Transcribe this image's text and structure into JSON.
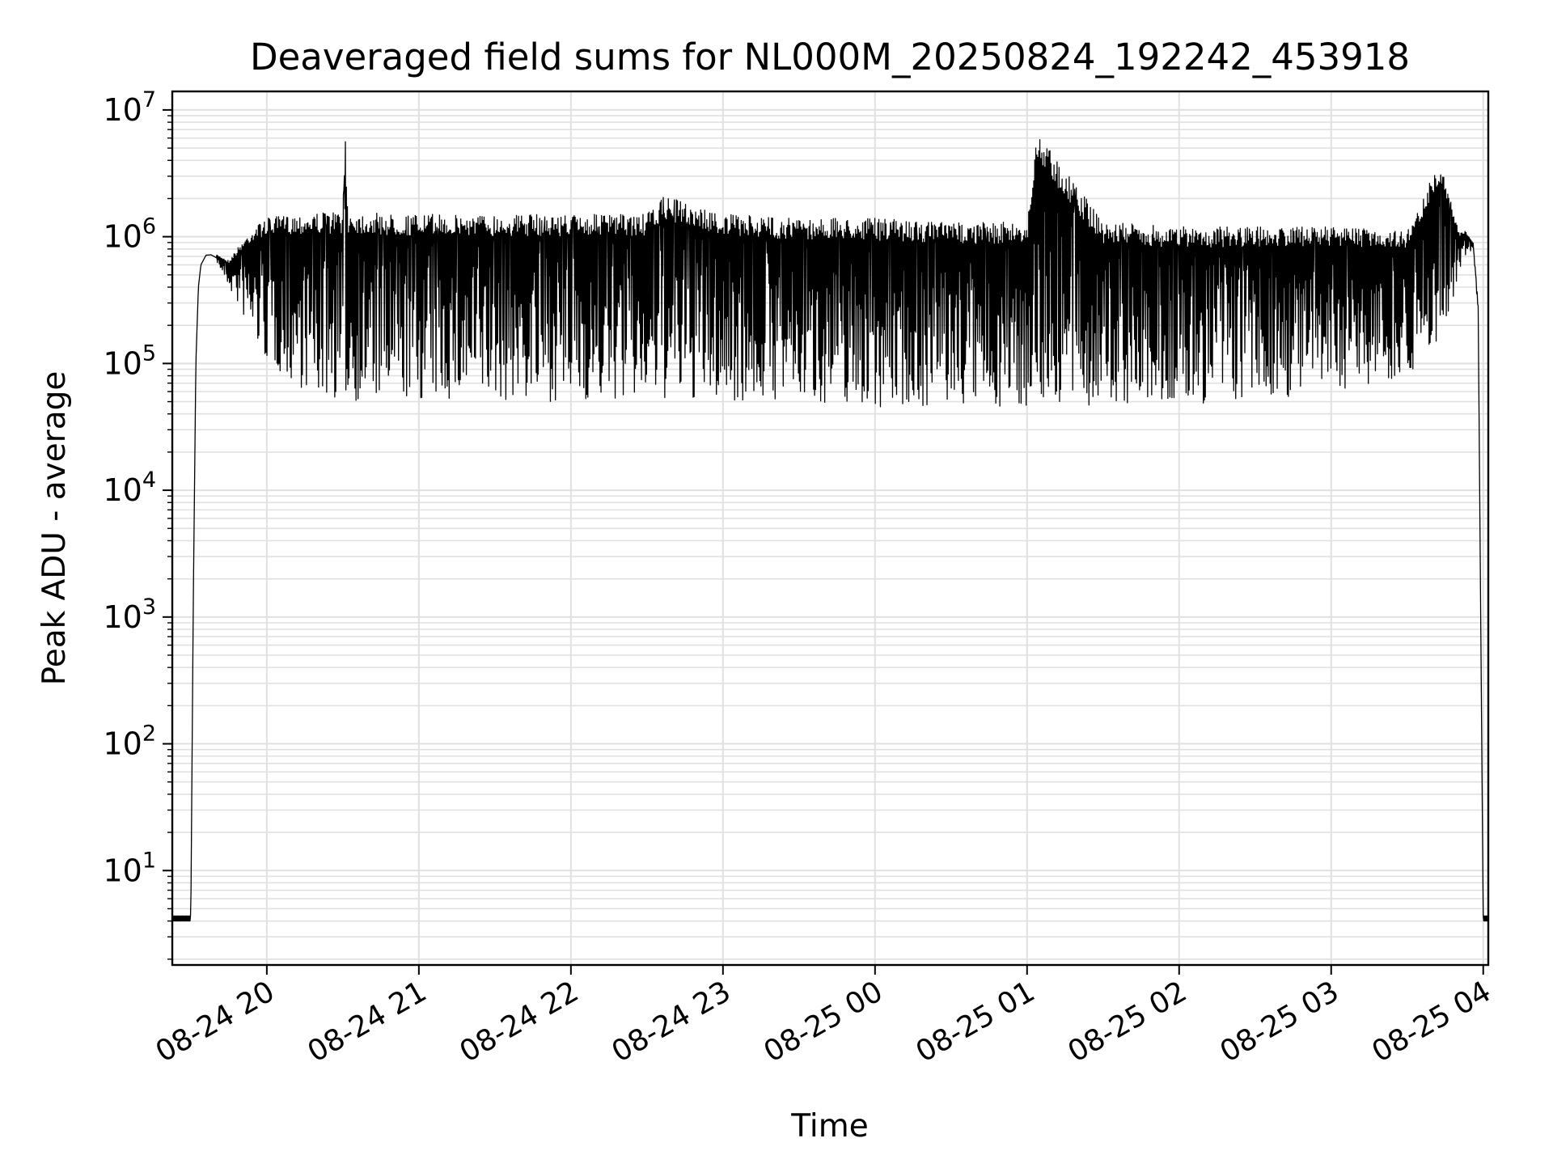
{
  "chart_data": {
    "type": "line",
    "title": "Deaveraged field sums for NL000M_20250824_192242_453918",
    "xlabel": "Time",
    "ylabel": "Peak ADU - average",
    "yscale": "log",
    "ylim": [
      1.8,
      14000000
    ],
    "xlim": [
      "2025-08-24 19:22:42",
      "2025-08-25 04:02:00"
    ],
    "grid": true,
    "legend": "none",
    "line_color": "#000000",
    "grid_color": "#e0e0e0",
    "x_ticks": [
      {
        "t": "2025-08-24 20:00",
        "label": "08-24 20"
      },
      {
        "t": "2025-08-24 21:00",
        "label": "08-24 21"
      },
      {
        "t": "2025-08-24 22:00",
        "label": "08-24 22"
      },
      {
        "t": "2025-08-24 23:00",
        "label": "08-24 23"
      },
      {
        "t": "2025-08-25 00:00",
        "label": "08-25 00"
      },
      {
        "t": "2025-08-25 01:00",
        "label": "08-25 01"
      },
      {
        "t": "2025-08-25 02:00",
        "label": "08-25 02"
      },
      {
        "t": "2025-08-25 03:00",
        "label": "08-25 03"
      },
      {
        "t": "2025-08-25 04:00",
        "label": "08-25 04"
      }
    ],
    "y_ticks": [
      {
        "value": 10,
        "base": "10",
        "exp": "1"
      },
      {
        "value": 100,
        "base": "10",
        "exp": "2"
      },
      {
        "value": 1000,
        "base": "10",
        "exp": "3"
      },
      {
        "value": 10000,
        "base": "10",
        "exp": "4"
      },
      {
        "value": 100000,
        "base": "10",
        "exp": "5"
      },
      {
        "value": 1000000,
        "base": "10",
        "exp": "6"
      },
      {
        "value": 10000000,
        "base": "10",
        "exp": "7"
      }
    ],
    "series": [
      {
        "x": [
          "2025-08-24 19:22:42",
          "2025-08-24 19:30:00",
          "2025-08-24 19:31:00",
          "2025-08-24 19:32:00",
          "2025-08-24 19:33:00",
          "2025-08-24 19:34:00",
          "2025-08-24 19:36:00",
          "2025-08-24 19:38:00",
          "2025-08-24 19:40:00",
          "2025-08-24 19:45:00",
          "2025-08-24 19:50:00",
          "2025-08-24 19:55:00",
          "2025-08-24 20:00:00",
          "2025-08-24 20:10:00",
          "2025-08-24 20:20:00",
          "2025-08-24 20:30:00",
          "2025-08-24 20:31:00",
          "2025-08-24 20:32:00",
          "2025-08-24 20:40:00",
          "2025-08-24 20:50:00",
          "2025-08-24 21:00:00",
          "2025-08-24 21:30:00",
          "2025-08-24 22:00:00",
          "2025-08-24 22:30:00",
          "2025-08-24 22:37:00",
          "2025-08-24 23:00:00",
          "2025-08-24 23:30:00",
          "2025-08-25 00:00:00",
          "2025-08-25 00:30:00",
          "2025-08-25 01:00:00",
          "2025-08-25 01:04:00",
          "2025-08-25 01:30:00",
          "2025-08-25 02:00:00",
          "2025-08-25 02:30:00",
          "2025-08-25 03:00:00",
          "2025-08-25 03:30:00",
          "2025-08-25 03:43:00",
          "2025-08-25 03:50:00",
          "2025-08-25 03:53:00",
          "2025-08-25 03:56:00",
          "2025-08-25 03:58:00",
          "2025-08-25 04:00:00",
          "2025-08-25 04:02:00"
        ],
        "upper": [
          4,
          4,
          1400,
          100000,
          400000,
          600000,
          730000,
          740000,
          720000,
          650000,
          900000,
          1200000,
          1400000,
          1500000,
          1550000,
          1600000,
          6500000,
          1600000,
          1550000,
          1500000,
          1500000,
          1500000,
          1500000,
          1500000,
          2100000,
          1500000,
          1400000,
          1400000,
          1300000,
          1300000,
          6900000,
          1300000,
          1200000,
          1200000,
          1200000,
          1100000,
          4000000,
          1150000,
          1100000,
          900000,
          300000,
          4,
          4
        ],
        "lower": [
          4,
          4,
          1400,
          100000,
          400000,
          600000,
          700000,
          700000,
          650000,
          400000,
          250000,
          150000,
          100000,
          70000,
          55000,
          50000,
          50000,
          50000,
          50000,
          50000,
          50000,
          50000,
          50000,
          50000,
          50000,
          50000,
          50000,
          45000,
          45000,
          45000,
          45000,
          45000,
          45000,
          50000,
          60000,
          80000,
          150000,
          350000,
          700000,
          800000,
          250000,
          4,
          4
        ]
      }
    ]
  }
}
